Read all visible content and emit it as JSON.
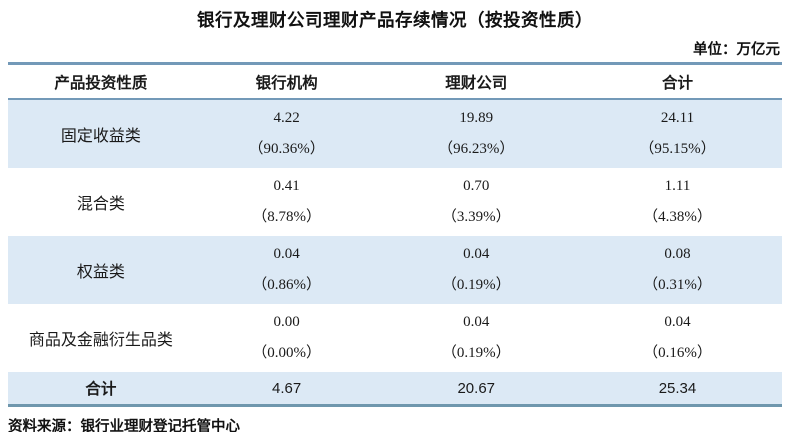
{
  "title": "银行及理财公司理财产品存续情况（按投资性质）",
  "unit_label": "单位：万亿元",
  "source": "资料来源：银行业理财登记托管中心",
  "colors": {
    "accent_border": "#7399b8",
    "stripe_bg": "#dce9f5",
    "text": "#1a1a1a"
  },
  "table": {
    "headers": [
      "产品投资性质",
      "银行机构",
      "理财公司",
      "合计"
    ],
    "rows": [
      {
        "label": "固定收益类",
        "bank": "4.22",
        "bank_pct": "（90.36%）",
        "wmc": "19.89",
        "wmc_pct": "（96.23%）",
        "total": "24.11",
        "total_pct": "（95.15%）"
      },
      {
        "label": "混合类",
        "bank": "0.41",
        "bank_pct": "（8.78%）",
        "wmc": "0.70",
        "wmc_pct": "（3.39%）",
        "total": "1.11",
        "total_pct": "（4.38%）"
      },
      {
        "label": "权益类",
        "bank": "0.04",
        "bank_pct": "（0.86%）",
        "wmc": "0.04",
        "wmc_pct": "（0.19%）",
        "total": "0.08",
        "total_pct": "（0.31%）"
      },
      {
        "label": "商品及金融衍生品类",
        "bank": "0.00",
        "bank_pct": "（0.00%）",
        "wmc": "0.04",
        "wmc_pct": "（0.19%）",
        "total": "0.04",
        "total_pct": "（0.16%）"
      }
    ],
    "total_row": {
      "label": "合计",
      "bank": "4.67",
      "wmc": "20.67",
      "total": "25.34"
    }
  },
  "chart_data": {
    "type": "table",
    "title": "银行及理财公司理财产品存续情况（按投资性质）",
    "unit": "万亿元",
    "columns": [
      "产品投资性质",
      "银行机构",
      "理财公司",
      "合计"
    ],
    "rows": [
      {
        "category": "固定收益类",
        "bank": 4.22,
        "bank_pct": 90.36,
        "wmc": 19.89,
        "wmc_pct": 96.23,
        "total": 24.11,
        "total_pct": 95.15
      },
      {
        "category": "混合类",
        "bank": 0.41,
        "bank_pct": 8.78,
        "wmc": 0.7,
        "wmc_pct": 3.39,
        "total": 1.11,
        "total_pct": 4.38
      },
      {
        "category": "权益类",
        "bank": 0.04,
        "bank_pct": 0.86,
        "wmc": 0.04,
        "wmc_pct": 0.19,
        "total": 0.08,
        "total_pct": 0.31
      },
      {
        "category": "商品及金融衍生品类",
        "bank": 0.0,
        "bank_pct": 0.0,
        "wmc": 0.04,
        "wmc_pct": 0.19,
        "total": 0.04,
        "total_pct": 0.16
      }
    ],
    "totals": {
      "category": "合计",
      "bank": 4.67,
      "wmc": 20.67,
      "total": 25.34
    },
    "source": "银行业理财登记托管中心"
  }
}
